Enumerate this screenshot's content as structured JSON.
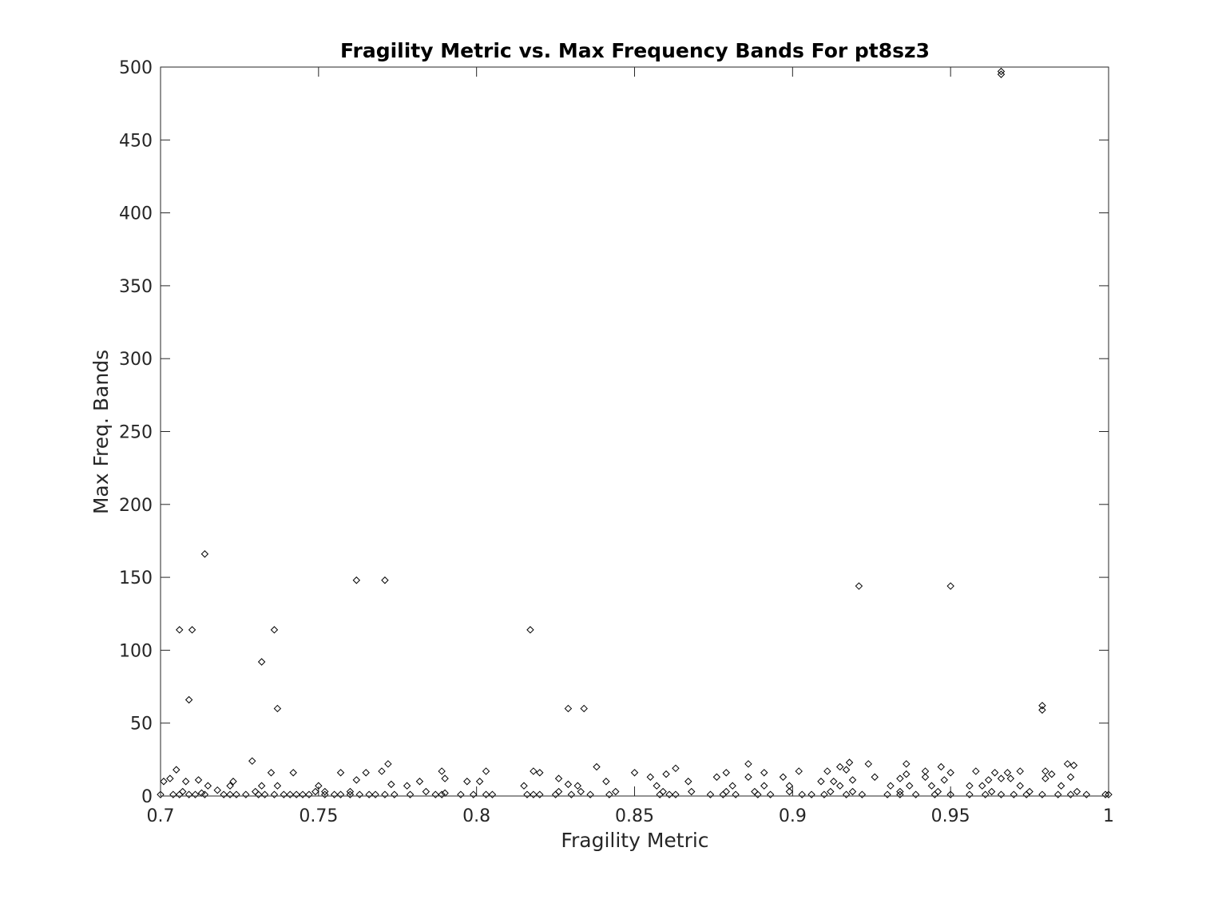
{
  "chart_data": {
    "type": "scatter",
    "title": "Fragility Metric vs. Max Frequency Bands For pt8sz3",
    "xlabel": "Fragility Metric",
    "ylabel": "Max Freq. Bands",
    "xlim": [
      0.7,
      1
    ],
    "ylim": [
      0,
      500
    ],
    "x_ticks": [
      0.7,
      0.75,
      0.8,
      0.85,
      0.9,
      0.95,
      1
    ],
    "x_tick_labels": [
      "0.7",
      "0.75",
      "0.8",
      "0.85",
      "0.9",
      "0.95",
      "1"
    ],
    "y_ticks": [
      0,
      50,
      100,
      150,
      200,
      250,
      300,
      350,
      400,
      450,
      500
    ],
    "y_tick_labels": [
      "0",
      "50",
      "100",
      "150",
      "200",
      "250",
      "300",
      "350",
      "400",
      "450",
      "500"
    ],
    "grid": false,
    "box": true,
    "marker": "diamond",
    "marker_color": "#000000",
    "points": [
      {
        "x": 0.966,
        "y": 497
      },
      {
        "x": 0.966,
        "y": 495
      },
      {
        "x": 0.714,
        "y": 166
      },
      {
        "x": 0.762,
        "y": 148
      },
      {
        "x": 0.771,
        "y": 148
      },
      {
        "x": 0.921,
        "y": 144
      },
      {
        "x": 0.95,
        "y": 144
      },
      {
        "x": 0.706,
        "y": 114
      },
      {
        "x": 0.71,
        "y": 114
      },
      {
        "x": 0.736,
        "y": 114
      },
      {
        "x": 0.817,
        "y": 114
      },
      {
        "x": 0.732,
        "y": 92
      },
      {
        "x": 0.709,
        "y": 66
      },
      {
        "x": 0.979,
        "y": 62
      },
      {
        "x": 0.979,
        "y": 59
      },
      {
        "x": 0.737,
        "y": 60
      },
      {
        "x": 0.829,
        "y": 60
      },
      {
        "x": 0.834,
        "y": 60
      },
      {
        "x": 0.729,
        "y": 24
      },
      {
        "x": 0.886,
        "y": 22
      },
      {
        "x": 0.918,
        "y": 23
      },
      {
        "x": 0.924,
        "y": 22
      },
      {
        "x": 0.936,
        "y": 22
      },
      {
        "x": 0.987,
        "y": 22
      },
      {
        "x": 0.989,
        "y": 21
      },
      {
        "x": 0.772,
        "y": 22
      },
      {
        "x": 0.838,
        "y": 20
      },
      {
        "x": 0.863,
        "y": 19
      },
      {
        "x": 0.915,
        "y": 20
      },
      {
        "x": 0.947,
        "y": 20
      },
      {
        "x": 0.705,
        "y": 18
      },
      {
        "x": 0.77,
        "y": 17
      },
      {
        "x": 0.789,
        "y": 17
      },
      {
        "x": 0.803,
        "y": 17
      },
      {
        "x": 0.818,
        "y": 17
      },
      {
        "x": 0.902,
        "y": 17
      },
      {
        "x": 0.911,
        "y": 17
      },
      {
        "x": 0.942,
        "y": 17
      },
      {
        "x": 0.958,
        "y": 17
      },
      {
        "x": 0.972,
        "y": 17
      },
      {
        "x": 0.98,
        "y": 17
      },
      {
        "x": 0.917,
        "y": 18
      },
      {
        "x": 0.735,
        "y": 16
      },
      {
        "x": 0.742,
        "y": 16
      },
      {
        "x": 0.757,
        "y": 16
      },
      {
        "x": 0.765,
        "y": 16
      },
      {
        "x": 0.82,
        "y": 16
      },
      {
        "x": 0.85,
        "y": 16
      },
      {
        "x": 0.86,
        "y": 15
      },
      {
        "x": 0.879,
        "y": 16
      },
      {
        "x": 0.891,
        "y": 16
      },
      {
        "x": 0.936,
        "y": 15
      },
      {
        "x": 0.95,
        "y": 16
      },
      {
        "x": 0.964,
        "y": 16
      },
      {
        "x": 0.968,
        "y": 16
      },
      {
        "x": 0.982,
        "y": 15
      },
      {
        "x": 0.701,
        "y": 10
      },
      {
        "x": 0.703,
        "y": 12
      },
      {
        "x": 0.708,
        "y": 10
      },
      {
        "x": 0.712,
        "y": 11
      },
      {
        "x": 0.723,
        "y": 10
      },
      {
        "x": 0.762,
        "y": 11
      },
      {
        "x": 0.782,
        "y": 10
      },
      {
        "x": 0.79,
        "y": 12
      },
      {
        "x": 0.797,
        "y": 10
      },
      {
        "x": 0.801,
        "y": 10
      },
      {
        "x": 0.826,
        "y": 12
      },
      {
        "x": 0.841,
        "y": 10
      },
      {
        "x": 0.855,
        "y": 13
      },
      {
        "x": 0.867,
        "y": 10
      },
      {
        "x": 0.876,
        "y": 13
      },
      {
        "x": 0.886,
        "y": 13
      },
      {
        "x": 0.897,
        "y": 13
      },
      {
        "x": 0.909,
        "y": 10
      },
      {
        "x": 0.913,
        "y": 10
      },
      {
        "x": 0.919,
        "y": 11
      },
      {
        "x": 0.926,
        "y": 13
      },
      {
        "x": 0.934,
        "y": 12
      },
      {
        "x": 0.942,
        "y": 13
      },
      {
        "x": 0.948,
        "y": 11
      },
      {
        "x": 0.962,
        "y": 11
      },
      {
        "x": 0.966,
        "y": 12
      },
      {
        "x": 0.969,
        "y": 12
      },
      {
        "x": 0.98,
        "y": 12
      },
      {
        "x": 0.988,
        "y": 13
      },
      {
        "x": 0.715,
        "y": 7
      },
      {
        "x": 0.722,
        "y": 7
      },
      {
        "x": 0.732,
        "y": 7
      },
      {
        "x": 0.737,
        "y": 7
      },
      {
        "x": 0.75,
        "y": 7
      },
      {
        "x": 0.773,
        "y": 8
      },
      {
        "x": 0.778,
        "y": 7
      },
      {
        "x": 0.815,
        "y": 7
      },
      {
        "x": 0.829,
        "y": 8
      },
      {
        "x": 0.832,
        "y": 7
      },
      {
        "x": 0.857,
        "y": 7
      },
      {
        "x": 0.881,
        "y": 7
      },
      {
        "x": 0.891,
        "y": 7
      },
      {
        "x": 0.899,
        "y": 7
      },
      {
        "x": 0.915,
        "y": 7
      },
      {
        "x": 0.931,
        "y": 7
      },
      {
        "x": 0.937,
        "y": 7
      },
      {
        "x": 0.944,
        "y": 7
      },
      {
        "x": 0.956,
        "y": 7
      },
      {
        "x": 0.96,
        "y": 7
      },
      {
        "x": 0.972,
        "y": 7
      },
      {
        "x": 0.985,
        "y": 7
      },
      {
        "x": 0.707,
        "y": 3
      },
      {
        "x": 0.713,
        "y": 2
      },
      {
        "x": 0.718,
        "y": 4
      },
      {
        "x": 0.73,
        "y": 3
      },
      {
        "x": 0.749,
        "y": 3
      },
      {
        "x": 0.752,
        "y": 3
      },
      {
        "x": 0.76,
        "y": 3
      },
      {
        "x": 0.784,
        "y": 3
      },
      {
        "x": 0.79,
        "y": 2
      },
      {
        "x": 0.826,
        "y": 3
      },
      {
        "x": 0.833,
        "y": 3
      },
      {
        "x": 0.844,
        "y": 3
      },
      {
        "x": 0.859,
        "y": 3
      },
      {
        "x": 0.868,
        "y": 3
      },
      {
        "x": 0.879,
        "y": 3
      },
      {
        "x": 0.888,
        "y": 3
      },
      {
        "x": 0.899,
        "y": 3
      },
      {
        "x": 0.912,
        "y": 3
      },
      {
        "x": 0.919,
        "y": 3
      },
      {
        "x": 0.934,
        "y": 3
      },
      {
        "x": 0.946,
        "y": 3
      },
      {
        "x": 0.963,
        "y": 3
      },
      {
        "x": 0.975,
        "y": 3
      },
      {
        "x": 0.99,
        "y": 3
      },
      {
        "x": 0.7,
        "y": 1
      },
      {
        "x": 0.704,
        "y": 1
      },
      {
        "x": 0.706,
        "y": 1
      },
      {
        "x": 0.709,
        "y": 1
      },
      {
        "x": 0.711,
        "y": 1
      },
      {
        "x": 0.714,
        "y": 1
      },
      {
        "x": 0.72,
        "y": 1
      },
      {
        "x": 0.722,
        "y": 1
      },
      {
        "x": 0.724,
        "y": 1
      },
      {
        "x": 0.727,
        "y": 1
      },
      {
        "x": 0.731,
        "y": 1
      },
      {
        "x": 0.733,
        "y": 1
      },
      {
        "x": 0.736,
        "y": 1
      },
      {
        "x": 0.739,
        "y": 1
      },
      {
        "x": 0.741,
        "y": 1
      },
      {
        "x": 0.743,
        "y": 1
      },
      {
        "x": 0.745,
        "y": 1
      },
      {
        "x": 0.747,
        "y": 1
      },
      {
        "x": 0.752,
        "y": 1
      },
      {
        "x": 0.755,
        "y": 1
      },
      {
        "x": 0.757,
        "y": 1
      },
      {
        "x": 0.76,
        "y": 1
      },
      {
        "x": 0.763,
        "y": 1
      },
      {
        "x": 0.766,
        "y": 1
      },
      {
        "x": 0.768,
        "y": 1
      },
      {
        "x": 0.771,
        "y": 1
      },
      {
        "x": 0.774,
        "y": 1
      },
      {
        "x": 0.779,
        "y": 1
      },
      {
        "x": 0.787,
        "y": 1
      },
      {
        "x": 0.789,
        "y": 1
      },
      {
        "x": 0.795,
        "y": 1
      },
      {
        "x": 0.799,
        "y": 1
      },
      {
        "x": 0.803,
        "y": 1
      },
      {
        "x": 0.805,
        "y": 1
      },
      {
        "x": 0.816,
        "y": 1
      },
      {
        "x": 0.818,
        "y": 1
      },
      {
        "x": 0.82,
        "y": 1
      },
      {
        "x": 0.825,
        "y": 1
      },
      {
        "x": 0.83,
        "y": 1
      },
      {
        "x": 0.836,
        "y": 1
      },
      {
        "x": 0.842,
        "y": 1
      },
      {
        "x": 0.858,
        "y": 1
      },
      {
        "x": 0.861,
        "y": 1
      },
      {
        "x": 0.863,
        "y": 1
      },
      {
        "x": 0.874,
        "y": 1
      },
      {
        "x": 0.878,
        "y": 1
      },
      {
        "x": 0.882,
        "y": 1
      },
      {
        "x": 0.889,
        "y": 1
      },
      {
        "x": 0.893,
        "y": 1
      },
      {
        "x": 0.903,
        "y": 1
      },
      {
        "x": 0.906,
        "y": 1
      },
      {
        "x": 0.91,
        "y": 1
      },
      {
        "x": 0.917,
        "y": 1
      },
      {
        "x": 0.922,
        "y": 1
      },
      {
        "x": 0.93,
        "y": 1
      },
      {
        "x": 0.934,
        "y": 1
      },
      {
        "x": 0.939,
        "y": 1
      },
      {
        "x": 0.945,
        "y": 1
      },
      {
        "x": 0.95,
        "y": 1
      },
      {
        "x": 0.956,
        "y": 1
      },
      {
        "x": 0.961,
        "y": 1
      },
      {
        "x": 0.966,
        "y": 1
      },
      {
        "x": 0.97,
        "y": 1
      },
      {
        "x": 0.974,
        "y": 1
      },
      {
        "x": 0.979,
        "y": 1
      },
      {
        "x": 0.984,
        "y": 1
      },
      {
        "x": 0.988,
        "y": 1
      },
      {
        "x": 0.993,
        "y": 1
      },
      {
        "x": 0.999,
        "y": 1
      },
      {
        "x": 1.0,
        "y": 1
      }
    ]
  }
}
